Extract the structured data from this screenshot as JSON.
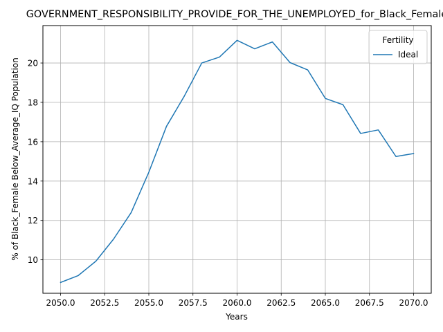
{
  "chart_data": {
    "type": "line",
    "title": "GOVERNMENT_RESPONSIBILITY_PROVIDE_FOR_THE_UNEMPLOYED_for_Black_Female",
    "xlabel": "Years",
    "ylabel": "% of Black_Female Below_Average_IQ Population",
    "xlim": [
      2049,
      2071
    ],
    "ylim": [
      8.3,
      21.9
    ],
    "xticks": [
      2050.0,
      2052.5,
      2055.0,
      2057.5,
      2060.0,
      2062.5,
      2065.0,
      2067.5,
      2070.0
    ],
    "xtick_labels": [
      "2050.0",
      "2052.5",
      "2055.0",
      "2057.5",
      "2060.0",
      "2062.5",
      "2065.0",
      "2067.5",
      "2070.0"
    ],
    "yticks": [
      10,
      12,
      14,
      16,
      18,
      20
    ],
    "ytick_labels": [
      "10",
      "12",
      "14",
      "16",
      "18",
      "20"
    ],
    "grid": true,
    "legend": {
      "title": "Fertility",
      "position": "top-right"
    },
    "series": [
      {
        "name": "Ideal",
        "color": "#1f77b4",
        "x": [
          2050,
          2051,
          2052,
          2053,
          2054,
          2055,
          2056,
          2057,
          2058,
          2059,
          2060,
          2061,
          2062,
          2063,
          2064,
          2065,
          2066,
          2067,
          2068,
          2069,
          2070
        ],
        "y": [
          8.85,
          9.2,
          9.93,
          11.05,
          12.4,
          14.45,
          16.78,
          18.3,
          20.0,
          20.3,
          21.15,
          20.72,
          21.07,
          20.02,
          19.65,
          18.2,
          17.88,
          16.42,
          16.6,
          15.25,
          15.4
        ]
      }
    ]
  }
}
